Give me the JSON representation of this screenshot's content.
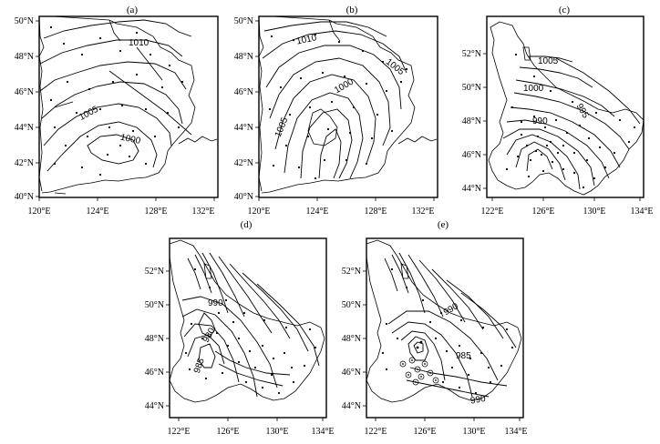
{
  "panels": [
    {
      "id": "a",
      "title": "(a)",
      "lat_ticks": [
        "50°N",
        "48°N",
        "46°N",
        "44°N",
        "42°N",
        "40°N"
      ],
      "lon_ticks": [
        "120°E",
        "124°E",
        "128°E",
        "132°E"
      ],
      "isobar_labels": [
        "1010",
        "1005",
        "1000"
      ]
    },
    {
      "id": "b",
      "title": "(b)",
      "lat_ticks": [
        "50°N",
        "48°N",
        "46°N",
        "44°N",
        "42°N",
        "40°N"
      ],
      "lon_ticks": [
        "120°E",
        "124°E",
        "128°E",
        "132°E"
      ],
      "isobar_labels": [
        "1010",
        "1005",
        "1000",
        "1005"
      ]
    },
    {
      "id": "c",
      "title": "(c)",
      "lat_ticks": [
        "52°N",
        "50°N",
        "48°N",
        "46°N",
        "44°N"
      ],
      "lon_ticks": [
        "122°E",
        "126°E",
        "130°E",
        "134°E"
      ],
      "isobar_labels": [
        "1005",
        "1000",
        "995",
        "990"
      ]
    },
    {
      "id": "d",
      "title": "(d)",
      "lat_ticks": [
        "52°N",
        "50°N",
        "48°N",
        "46°N",
        "44°N"
      ],
      "lon_ticks": [
        "122°E",
        "126°E",
        "130°E",
        "134°E"
      ],
      "isobar_labels": [
        "990",
        "980",
        "985"
      ]
    },
    {
      "id": "e",
      "title": "(e)",
      "lat_ticks": [
        "52°N",
        "50°N",
        "48°N",
        "46°N",
        "44°N"
      ],
      "lon_ticks": [
        "122°E",
        "126°E",
        "130°E",
        "134°E"
      ],
      "isobar_labels": [
        "990",
        "985",
        "990"
      ]
    }
  ]
}
